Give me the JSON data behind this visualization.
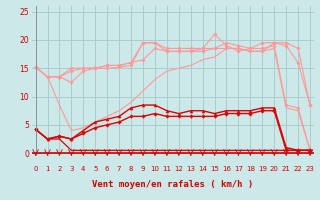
{
  "x": [
    0,
    1,
    2,
    3,
    4,
    5,
    6,
    7,
    8,
    9,
    10,
    11,
    12,
    13,
    14,
    15,
    16,
    17,
    18,
    19,
    20,
    21,
    22,
    23
  ],
  "series": [
    {
      "name": "pink_upper1",
      "color": "#ff9999",
      "linewidth": 0.8,
      "marker": "D",
      "markersize": 1.8,
      "values": [
        15.2,
        13.5,
        13.5,
        15.0,
        15.0,
        15.0,
        15.5,
        15.5,
        16.0,
        19.5,
        19.5,
        18.5,
        18.5,
        18.5,
        18.5,
        18.5,
        19.5,
        19.0,
        18.5,
        19.5,
        19.5,
        19.0,
        16.0,
        8.5
      ]
    },
    {
      "name": "pink_upper2",
      "color": "#ff9999",
      "linewidth": 0.8,
      "marker": "D",
      "markersize": 1.8,
      "values": [
        15.2,
        13.5,
        13.5,
        14.5,
        15.0,
        15.0,
        15.5,
        15.5,
        16.0,
        16.5,
        18.5,
        18.0,
        18.0,
        18.0,
        18.0,
        18.5,
        18.5,
        18.5,
        18.0,
        18.0,
        19.5,
        19.5,
        18.5,
        8.5
      ]
    },
    {
      "name": "pink_zigzag",
      "color": "#ff9999",
      "linewidth": 0.8,
      "marker": "D",
      "markersize": 1.8,
      "values": [
        15.2,
        13.5,
        13.5,
        12.5,
        14.5,
        15.0,
        15.0,
        15.2,
        15.5,
        19.5,
        19.5,
        18.0,
        18.0,
        18.0,
        18.5,
        21.0,
        19.0,
        18.0,
        18.5,
        18.5,
        19.0,
        8.5,
        8.0,
        0.5
      ]
    },
    {
      "name": "pink_lower_fan",
      "color": "#ff9999",
      "linewidth": 0.8,
      "marker": null,
      "markersize": 0,
      "values": [
        15.2,
        13.5,
        8.5,
        4.0,
        4.5,
        5.5,
        6.5,
        7.5,
        9.0,
        11.0,
        13.0,
        14.5,
        15.0,
        15.5,
        16.5,
        17.0,
        18.5,
        18.5,
        18.0,
        18.0,
        18.5,
        8.0,
        7.5,
        0.5
      ]
    },
    {
      "name": "red_upper",
      "color": "#dd0000",
      "linewidth": 1.0,
      "marker": "^",
      "markersize": 2.2,
      "values": [
        4.2,
        2.5,
        3.0,
        2.5,
        4.0,
        5.5,
        6.0,
        6.5,
        8.0,
        8.5,
        8.5,
        7.5,
        7.0,
        7.5,
        7.5,
        7.0,
        7.5,
        7.5,
        7.5,
        8.0,
        8.0,
        1.0,
        0.5,
        0.5
      ]
    },
    {
      "name": "red_middle",
      "color": "#dd0000",
      "linewidth": 1.0,
      "marker": "D",
      "markersize": 1.8,
      "values": [
        4.2,
        2.5,
        3.0,
        2.5,
        3.5,
        4.5,
        5.0,
        5.5,
        6.5,
        6.5,
        7.0,
        6.5,
        6.5,
        6.5,
        6.5,
        6.5,
        7.0,
        7.0,
        7.0,
        7.5,
        7.5,
        0.5,
        0.5,
        0.5
      ]
    },
    {
      "name": "red_lower",
      "color": "#dd0000",
      "linewidth": 0.9,
      "marker": null,
      "markersize": 0,
      "values": [
        4.2,
        2.5,
        2.5,
        0.5,
        0.5,
        0.5,
        0.5,
        0.5,
        0.5,
        0.5,
        0.5,
        0.5,
        0.5,
        0.5,
        0.5,
        0.5,
        0.5,
        0.5,
        0.5,
        0.5,
        0.5,
        0.5,
        0.5,
        0.5
      ]
    }
  ],
  "xlim": [
    -0.3,
    23.3
  ],
  "ylim": [
    -0.5,
    26
  ],
  "yticks": [
    0,
    5,
    10,
    15,
    20,
    25
  ],
  "xticks": [
    0,
    1,
    2,
    3,
    4,
    5,
    6,
    7,
    8,
    9,
    10,
    11,
    12,
    13,
    14,
    15,
    16,
    17,
    18,
    19,
    20,
    21,
    22,
    23
  ],
  "xlabel": "Vent moyen/en rafales ( km/h )",
  "background_color": "#cce8e8",
  "grid_color": "#aacccc",
  "xlabel_color": "#cc0000",
  "tick_color": "#cc0000",
  "arrow_color": "#cc0000"
}
